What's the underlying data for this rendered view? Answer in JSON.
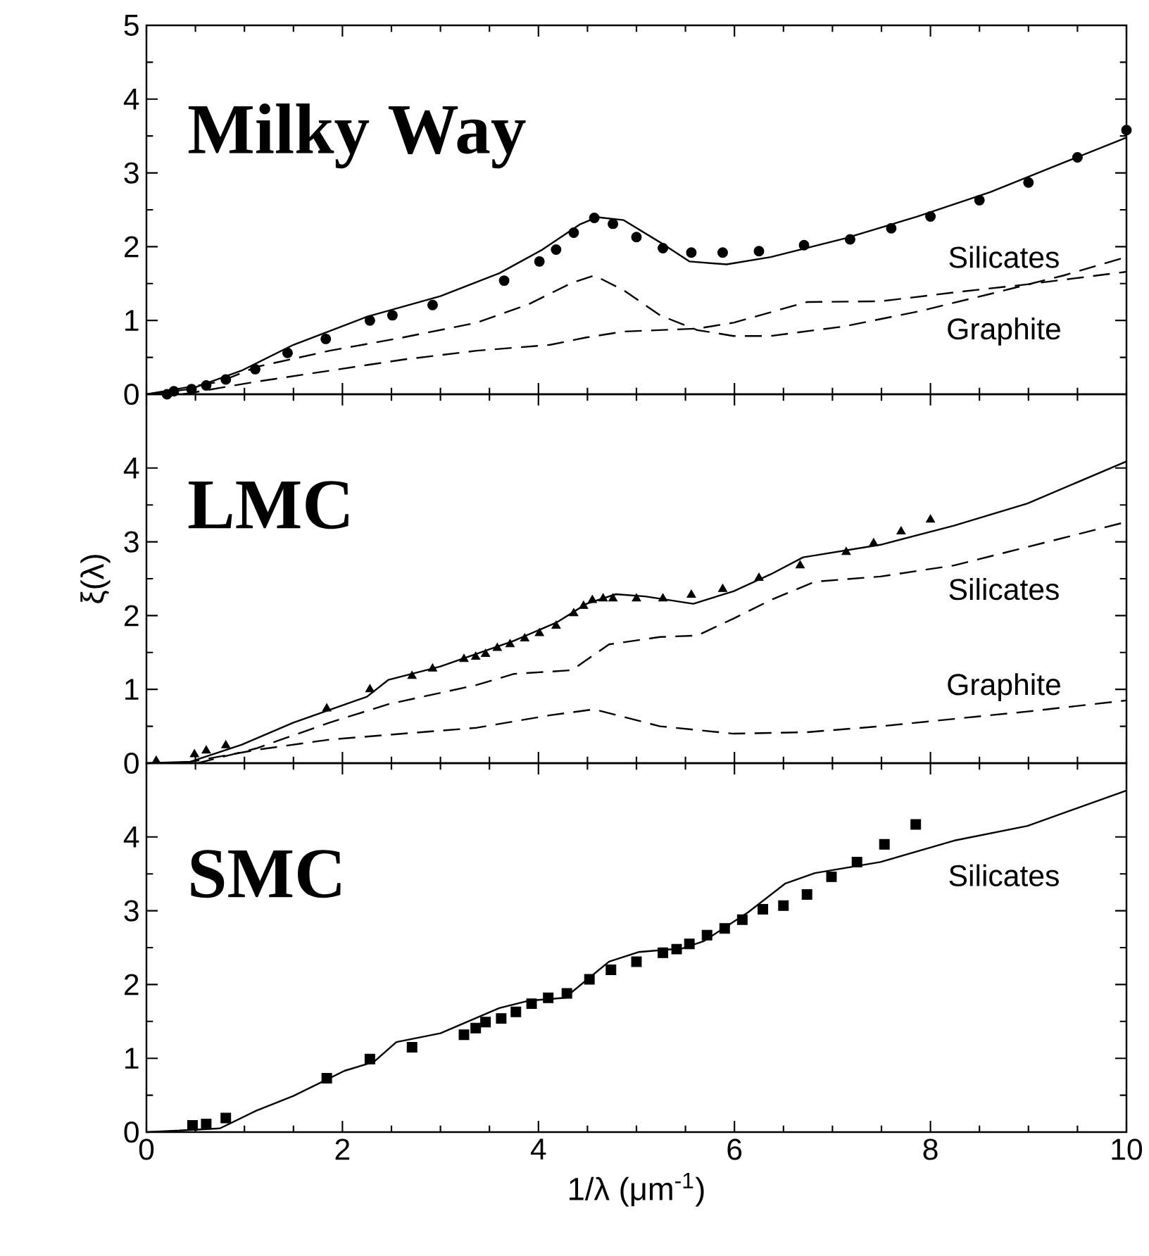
{
  "chart_data": [
    {
      "type": "line",
      "title": "Milky Way",
      "xlim": [
        0,
        10
      ],
      "ylim": [
        0,
        5
      ],
      "xticks": [
        0,
        2,
        4,
        6,
        8,
        10
      ],
      "yticks": [
        0,
        1,
        2,
        3,
        4,
        5
      ],
      "tick_labels": "y",
      "series": [
        {
          "type": "scatter",
          "marker": "circle",
          "color": "#000000",
          "x": [
            0.21,
            0.28,
            0.46,
            0.61,
            0.81,
            1.11,
            1.44,
            1.83,
            2.28,
            2.51,
            2.92,
            3.65,
            4.01,
            4.18,
            4.36,
            4.57,
            4.76,
            5.0,
            5.27,
            5.56,
            5.88,
            6.25,
            6.71,
            7.18,
            7.6,
            8.0,
            8.5,
            9.0,
            9.5,
            10.0
          ],
          "values": [
            0.0,
            0.04,
            0.07,
            0.12,
            0.2,
            0.34,
            0.56,
            0.75,
            1.0,
            1.07,
            1.21,
            1.54,
            1.8,
            1.96,
            2.19,
            2.39,
            2.31,
            2.13,
            1.98,
            1.92,
            1.92,
            1.94,
            2.02,
            2.1,
            2.25,
            2.41,
            2.63,
            2.87,
            3.21,
            3.58
          ]
        },
        {
          "type": "line",
          "line_style": "solid",
          "color": "#000000",
          "x": [
            0,
            0.45,
            0.97,
            1.5,
            2.25,
            3,
            3.6,
            4.04,
            4.42,
            4.6,
            4.87,
            5.24,
            5.54,
            5.92,
            6.37,
            7.12,
            7.87,
            8.61,
            9.36,
            10
          ],
          "values": [
            0,
            0.07,
            0.32,
            0.67,
            1.05,
            1.33,
            1.64,
            1.96,
            2.3,
            2.4,
            2.36,
            2.06,
            1.8,
            1.76,
            1.86,
            2.11,
            2.41,
            2.74,
            3.14,
            3.48
          ]
        },
        {
          "type": "line",
          "line_style": "dashed",
          "color": "#000000",
          "x": [
            0,
            0.75,
            1.12,
            1.87,
            2.62,
            3.37,
            3.9,
            4.34,
            4.57,
            4.87,
            5.24,
            5.62,
            5.99,
            6.37,
            7.12,
            7.87,
            8.61,
            9.36,
            10
          ],
          "values": [
            0,
            0.17,
            0.37,
            0.59,
            0.77,
            0.97,
            1.22,
            1.51,
            1.61,
            1.41,
            1.07,
            0.87,
            0.79,
            0.79,
            0.92,
            1.12,
            1.36,
            1.61,
            1.86
          ]
        },
        {
          "type": "line",
          "line_style": "dashed",
          "color": "#000000",
          "x": [
            0.37,
            1.12,
            1.87,
            2.62,
            3.37,
            4.12,
            4.49,
            4.87,
            5.62,
            5.99,
            6.74,
            7.49,
            8.24,
            8.99,
            10
          ],
          "values": [
            0,
            0.17,
            0.32,
            0.47,
            0.59,
            0.67,
            0.77,
            0.85,
            0.89,
            0.97,
            1.25,
            1.26,
            1.38,
            1.49,
            1.66
          ]
        }
      ],
      "annotations": [
        "Silicates",
        "Graphite"
      ]
    },
    {
      "type": "line",
      "title": "LMC",
      "ylabel": "ξ(λ)",
      "xlim": [
        0,
        10
      ],
      "ylim": [
        0,
        5
      ],
      "xticks": [
        0,
        2,
        4,
        6,
        8,
        10
      ],
      "yticks": [
        0,
        1,
        2,
        3,
        4
      ],
      "tick_labels": "y",
      "series": [
        {
          "type": "scatter",
          "marker": "triangle",
          "color": "#000000",
          "x": [
            0.1,
            0.49,
            0.61,
            0.81,
            1.84,
            2.28,
            2.71,
            2.92,
            3.24,
            3.36,
            3.46,
            3.58,
            3.71,
            3.86,
            4.01,
            4.18,
            4.36,
            4.46,
            4.55,
            4.66,
            4.76,
            5.0,
            5.27,
            5.56,
            5.88,
            6.25,
            6.67,
            7.14,
            7.42,
            7.7,
            8.0
          ],
          "values": [
            0.03,
            0.12,
            0.17,
            0.24,
            0.74,
            1.0,
            1.18,
            1.28,
            1.41,
            1.44,
            1.48,
            1.56,
            1.61,
            1.69,
            1.76,
            1.86,
            2.03,
            2.13,
            2.21,
            2.23,
            2.23,
            2.23,
            2.23,
            2.28,
            2.36,
            2.51,
            2.68,
            2.86,
            2.98,
            3.14,
            3.3
          ]
        },
        {
          "type": "line",
          "line_style": "solid",
          "color": "#000000",
          "x": [
            0,
            0.45,
            0.97,
            1.5,
            2.25,
            2.47,
            3,
            3.75,
            4.19,
            4.49,
            4.79,
            5.09,
            5.58,
            5.99,
            6.37,
            6.7,
            7.49,
            8.24,
            8.99,
            10
          ],
          "values": [
            0,
            0.02,
            0.25,
            0.55,
            0.9,
            1.13,
            1.31,
            1.66,
            1.91,
            2.16,
            2.29,
            2.26,
            2.16,
            2.33,
            2.56,
            2.79,
            2.96,
            3.22,
            3.52,
            4.09
          ]
        },
        {
          "type": "line",
          "line_style": "dashed",
          "color": "#000000",
          "x": [
            0.52,
            1.12,
            1.87,
            2.47,
            3.37,
            3.75,
            4.34,
            4.72,
            5.24,
            5.62,
            5.99,
            6.37,
            6.82,
            7.49,
            8.24,
            8.99,
            10
          ],
          "values": [
            0,
            0.2,
            0.55,
            0.8,
            1.06,
            1.21,
            1.26,
            1.61,
            1.71,
            1.73,
            1.96,
            2.21,
            2.46,
            2.53,
            2.68,
            2.93,
            3.27
          ]
        },
        {
          "type": "line",
          "line_style": "dashed",
          "color": "#000000",
          "x": [
            0.37,
            1.12,
            1.87,
            2.62,
            3.37,
            4.12,
            4.57,
            5.24,
            5.99,
            6.74,
            7.49,
            8.24,
            8.99,
            10
          ],
          "values": [
            0,
            0.18,
            0.32,
            0.4,
            0.48,
            0.65,
            0.73,
            0.5,
            0.4,
            0.42,
            0.5,
            0.6,
            0.7,
            0.85
          ]
        }
      ],
      "annotations": [
        "Silicates",
        "Graphite"
      ]
    },
    {
      "type": "line",
      "title": "SMC",
      "xlabel": "1/λ (μm$^{-1}$)",
      "xlim": [
        0,
        10
      ],
      "ylim": [
        0,
        5
      ],
      "xticks": [
        0,
        2,
        4,
        6,
        8,
        10
      ],
      "yticks": [
        0,
        1,
        2,
        3,
        4
      ],
      "series": [
        {
          "type": "scatter",
          "marker": "square",
          "color": "#000000",
          "x": [
            0.47,
            0.61,
            0.81,
            1.84,
            2.28,
            2.71,
            3.24,
            3.36,
            3.46,
            3.62,
            3.77,
            3.93,
            4.1,
            4.29,
            4.52,
            4.74,
            5.0,
            5.27,
            5.41,
            5.54,
            5.72,
            5.9,
            6.08,
            6.29,
            6.5,
            6.74,
            6.99,
            7.25,
            7.53,
            7.85
          ],
          "values": [
            0.09,
            0.11,
            0.19,
            0.73,
            0.99,
            1.15,
            1.32,
            1.41,
            1.49,
            1.54,
            1.63,
            1.74,
            1.82,
            1.88,
            2.07,
            2.2,
            2.31,
            2.43,
            2.48,
            2.55,
            2.67,
            2.76,
            2.88,
            3.02,
            3.07,
            3.22,
            3.46,
            3.66,
            3.9,
            4.17
          ]
        },
        {
          "type": "line",
          "line_style": "solid",
          "color": "#000000",
          "x": [
            0,
            0.75,
            1.12,
            1.5,
            2.02,
            2.32,
            2.55,
            3,
            3.6,
            3.9,
            4.27,
            4.72,
            5.02,
            5.47,
            5.69,
            6.14,
            6.52,
            6.82,
            7.49,
            8.24,
            8.99,
            10
          ],
          "values": [
            0,
            0.05,
            0.29,
            0.49,
            0.83,
            0.95,
            1.22,
            1.34,
            1.68,
            1.78,
            1.82,
            2.31,
            2.44,
            2.49,
            2.59,
            2.98,
            3.37,
            3.51,
            3.66,
            3.95,
            4.15,
            4.63
          ]
        }
      ],
      "annotations": [
        "Silicates"
      ]
    }
  ]
}
